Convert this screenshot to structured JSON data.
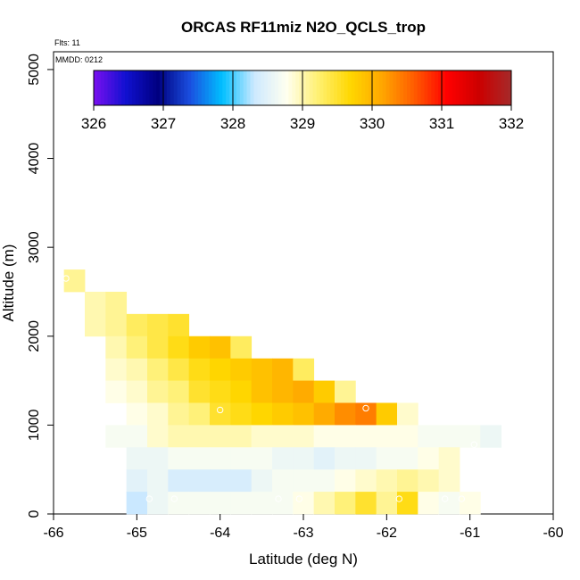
{
  "chart_data": {
    "type": "heatmap",
    "title": "ORCAS RF11miz N2O_QCLS_trop",
    "annotations": [
      "Flts: 11",
      "MMDD: 0212"
    ],
    "xlabel": "Latitude (deg N)",
    "ylabel": "Altitude (m)",
    "xlim": [
      -66,
      -60
    ],
    "ylim": [
      0,
      5200
    ],
    "x_ticks": [
      "-66",
      "-65",
      "-64",
      "-63",
      "-62",
      "-61",
      "-60"
    ],
    "y_ticks": [
      "0",
      "1000",
      "2000",
      "3000",
      "4000",
      "5000"
    ],
    "colorbar": {
      "range": [
        326,
        332
      ],
      "ticks": [
        "326",
        "327",
        "328",
        "329",
        "330",
        "331",
        "332"
      ],
      "stops": [
        "#7a10f0",
        "#1010d0",
        "#000080",
        "#1a4fe0",
        "#00bfff",
        "#cde9ff",
        "#fffff0",
        "#fff070",
        "#ffd700",
        "#ffa500",
        "#ff5a00",
        "#ff0000",
        "#cc0000",
        "#a52a2a"
      ]
    },
    "cell_size": {
      "lat": 0.25,
      "alt": 250
    },
    "cells": [
      {
        "lat": -65.75,
        "alt": 2500,
        "v": 329.1
      },
      {
        "lat": -65.5,
        "alt": 2250,
        "v": 329.0
      },
      {
        "lat": -65.25,
        "alt": 2250,
        "v": 329.1
      },
      {
        "lat": -65.5,
        "alt": 2000,
        "v": 329.0
      },
      {
        "lat": -65.25,
        "alt": 2000,
        "v": 329.1
      },
      {
        "lat": -65.0,
        "alt": 2000,
        "v": 329.3
      },
      {
        "lat": -64.75,
        "alt": 2000,
        "v": 329.4
      },
      {
        "lat": -64.5,
        "alt": 2000,
        "v": 329.5
      },
      {
        "lat": -65.25,
        "alt": 1750,
        "v": 329.0
      },
      {
        "lat": -65.0,
        "alt": 1750,
        "v": 329.2
      },
      {
        "lat": -64.75,
        "alt": 1750,
        "v": 329.4
      },
      {
        "lat": -64.5,
        "alt": 1750,
        "v": 329.6
      },
      {
        "lat": -64.25,
        "alt": 1750,
        "v": 329.8
      },
      {
        "lat": -64.0,
        "alt": 1750,
        "v": 329.9
      },
      {
        "lat": -63.75,
        "alt": 1750,
        "v": 329.3
      },
      {
        "lat": -65.25,
        "alt": 1500,
        "v": 328.9
      },
      {
        "lat": -65.0,
        "alt": 1500,
        "v": 329.0
      },
      {
        "lat": -64.75,
        "alt": 1500,
        "v": 329.2
      },
      {
        "lat": -64.5,
        "alt": 1500,
        "v": 329.4
      },
      {
        "lat": -64.25,
        "alt": 1500,
        "v": 329.6
      },
      {
        "lat": -64.0,
        "alt": 1500,
        "v": 329.7
      },
      {
        "lat": -63.75,
        "alt": 1500,
        "v": 329.8
      },
      {
        "lat": -63.5,
        "alt": 1500,
        "v": 329.9
      },
      {
        "lat": -63.25,
        "alt": 1500,
        "v": 330.0
      },
      {
        "lat": -63.0,
        "alt": 1500,
        "v": 329.3
      },
      {
        "lat": -65.25,
        "alt": 1250,
        "v": 328.8
      },
      {
        "lat": -65.0,
        "alt": 1250,
        "v": 328.9
      },
      {
        "lat": -64.75,
        "alt": 1250,
        "v": 329.1
      },
      {
        "lat": -64.5,
        "alt": 1250,
        "v": 329.2
      },
      {
        "lat": -64.25,
        "alt": 1250,
        "v": 329.5
      },
      {
        "lat": -64.0,
        "alt": 1250,
        "v": 329.6
      },
      {
        "lat": -63.75,
        "alt": 1250,
        "v": 329.7
      },
      {
        "lat": -63.5,
        "alt": 1250,
        "v": 329.9
      },
      {
        "lat": -63.25,
        "alt": 1250,
        "v": 330.0
      },
      {
        "lat": -63.0,
        "alt": 1250,
        "v": 330.1
      },
      {
        "lat": -62.75,
        "alt": 1250,
        "v": 329.8
      },
      {
        "lat": -62.5,
        "alt": 1250,
        "v": 329.1
      },
      {
        "lat": -65.0,
        "alt": 1000,
        "v": 328.8
      },
      {
        "lat": -64.75,
        "alt": 1000,
        "v": 328.9
      },
      {
        "lat": -64.5,
        "alt": 1000,
        "v": 329.1
      },
      {
        "lat": -64.25,
        "alt": 1000,
        "v": 329.2
      },
      {
        "lat": -64.0,
        "alt": 1000,
        "v": 329.5
      },
      {
        "lat": -63.75,
        "alt": 1000,
        "v": 329.6
      },
      {
        "lat": -63.5,
        "alt": 1000,
        "v": 329.7
      },
      {
        "lat": -63.25,
        "alt": 1000,
        "v": 329.8
      },
      {
        "lat": -63.0,
        "alt": 1000,
        "v": 329.9
      },
      {
        "lat": -62.75,
        "alt": 1000,
        "v": 330.1
      },
      {
        "lat": -62.5,
        "alt": 1000,
        "v": 330.3
      },
      {
        "lat": -62.25,
        "alt": 1000,
        "v": 330.4
      },
      {
        "lat": -62.0,
        "alt": 1000,
        "v": 329.8
      },
      {
        "lat": -61.75,
        "alt": 1000,
        "v": 328.9
      },
      {
        "lat": -65.25,
        "alt": 750,
        "v": 328.7
      },
      {
        "lat": -65.0,
        "alt": 750,
        "v": 328.7
      },
      {
        "lat": -64.75,
        "alt": 750,
        "v": 328.9
      },
      {
        "lat": -64.5,
        "alt": 750,
        "v": 329.0
      },
      {
        "lat": -64.25,
        "alt": 750,
        "v": 329.0
      },
      {
        "lat": -64.0,
        "alt": 750,
        "v": 329.0
      },
      {
        "lat": -63.75,
        "alt": 750,
        "v": 329.0
      },
      {
        "lat": -63.5,
        "alt": 750,
        "v": 328.9
      },
      {
        "lat": -63.25,
        "alt": 750,
        "v": 328.9
      },
      {
        "lat": -63.0,
        "alt": 750,
        "v": 328.9
      },
      {
        "lat": -62.75,
        "alt": 750,
        "v": 328.8
      },
      {
        "lat": -62.5,
        "alt": 750,
        "v": 328.8
      },
      {
        "lat": -62.25,
        "alt": 750,
        "v": 328.8
      },
      {
        "lat": -62.0,
        "alt": 750,
        "v": 328.8
      },
      {
        "lat": -61.75,
        "alt": 750,
        "v": 328.8
      },
      {
        "lat": -61.5,
        "alt": 750,
        "v": 328.7
      },
      {
        "lat": -61.25,
        "alt": 750,
        "v": 328.7
      },
      {
        "lat": -61.0,
        "alt": 750,
        "v": 328.7
      },
      {
        "lat": -60.75,
        "alt": 750,
        "v": 328.6
      },
      {
        "lat": -65.0,
        "alt": 500,
        "v": 328.6
      },
      {
        "lat": -64.75,
        "alt": 500,
        "v": 328.6
      },
      {
        "lat": -64.5,
        "alt": 500,
        "v": 328.7
      },
      {
        "lat": -64.25,
        "alt": 500,
        "v": 328.7
      },
      {
        "lat": -64.0,
        "alt": 500,
        "v": 328.7
      },
      {
        "lat": -63.75,
        "alt": 500,
        "v": 328.7
      },
      {
        "lat": -63.5,
        "alt": 500,
        "v": 328.7
      },
      {
        "lat": -63.25,
        "alt": 500,
        "v": 328.6
      },
      {
        "lat": -63.0,
        "alt": 500,
        "v": 328.6
      },
      {
        "lat": -62.75,
        "alt": 500,
        "v": 328.5
      },
      {
        "lat": -62.5,
        "alt": 500,
        "v": 328.6
      },
      {
        "lat": -62.25,
        "alt": 500,
        "v": 328.6
      },
      {
        "lat": -62.0,
        "alt": 500,
        "v": 328.7
      },
      {
        "lat": -61.75,
        "alt": 500,
        "v": 328.7
      },
      {
        "lat": -61.5,
        "alt": 500,
        "v": 328.8
      },
      {
        "lat": -61.25,
        "alt": 500,
        "v": 328.9
      },
      {
        "lat": -65.0,
        "alt": 250,
        "v": 328.5
      },
      {
        "lat": -64.75,
        "alt": 250,
        "v": 328.6
      },
      {
        "lat": -64.5,
        "alt": 250,
        "v": 328.4
      },
      {
        "lat": -64.25,
        "alt": 250,
        "v": 328.4
      },
      {
        "lat": -64.0,
        "alt": 250,
        "v": 328.4
      },
      {
        "lat": -63.75,
        "alt": 250,
        "v": 328.4
      },
      {
        "lat": -63.5,
        "alt": 250,
        "v": 328.6
      },
      {
        "lat": -63.25,
        "alt": 250,
        "v": 328.7
      },
      {
        "lat": -63.0,
        "alt": 250,
        "v": 328.7
      },
      {
        "lat": -62.75,
        "alt": 250,
        "v": 328.7
      },
      {
        "lat": -62.5,
        "alt": 250,
        "v": 328.8
      },
      {
        "lat": -62.25,
        "alt": 250,
        "v": 328.9
      },
      {
        "lat": -62.0,
        "alt": 250,
        "v": 329.0
      },
      {
        "lat": -61.75,
        "alt": 250,
        "v": 329.1
      },
      {
        "lat": -61.5,
        "alt": 250,
        "v": 329.0
      },
      {
        "lat": -61.25,
        "alt": 250,
        "v": 328.9
      },
      {
        "lat": -65.0,
        "alt": 0,
        "v": 328.3
      },
      {
        "lat": -64.75,
        "alt": 0,
        "v": 328.6
      },
      {
        "lat": -64.5,
        "alt": 0,
        "v": 328.7
      },
      {
        "lat": -64.25,
        "alt": 0,
        "v": 328.7
      },
      {
        "lat": -64.0,
        "alt": 0,
        "v": 328.7
      },
      {
        "lat": -63.75,
        "alt": 0,
        "v": 328.7
      },
      {
        "lat": -63.5,
        "alt": 0,
        "v": 328.7
      },
      {
        "lat": -63.25,
        "alt": 0,
        "v": 328.7
      },
      {
        "lat": -63.0,
        "alt": 0,
        "v": 328.8
      },
      {
        "lat": -62.75,
        "alt": 0,
        "v": 329.0
      },
      {
        "lat": -62.5,
        "alt": 0,
        "v": 329.2
      },
      {
        "lat": -62.25,
        "alt": 0,
        "v": 329.5
      },
      {
        "lat": -62.0,
        "alt": 0,
        "v": 329.1
      },
      {
        "lat": -61.75,
        "alt": 0,
        "v": 329.6
      },
      {
        "lat": -61.5,
        "alt": 0,
        "v": 328.8
      },
      {
        "lat": -61.25,
        "alt": 0,
        "v": 328.7
      },
      {
        "lat": -61.0,
        "alt": 0,
        "v": 328.8
      }
    ],
    "markers": [
      {
        "lat": -65.85,
        "alt": 2650
      },
      {
        "lat": -64.0,
        "alt": 1170
      },
      {
        "lat": -62.25,
        "alt": 1190
      },
      {
        "lat": -60.95,
        "alt": 780
      },
      {
        "lat": -64.85,
        "alt": 170
      },
      {
        "lat": -64.55,
        "alt": 170
      },
      {
        "lat": -63.3,
        "alt": 170
      },
      {
        "lat": -63.05,
        "alt": 170
      },
      {
        "lat": -61.85,
        "alt": 170
      },
      {
        "lat": -61.3,
        "alt": 170
      },
      {
        "lat": -61.1,
        "alt": 170
      }
    ]
  }
}
